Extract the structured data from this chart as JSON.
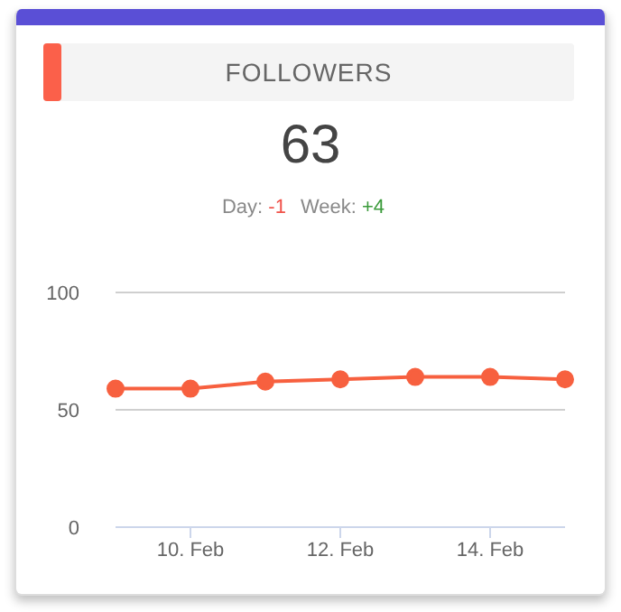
{
  "chart_data": {
    "type": "line",
    "title": "FOLLOWERS",
    "annotations": [
      "63",
      "Day: -1",
      "Week: +4"
    ],
    "x": [
      "--02-09",
      "--02-10",
      "--02-11",
      "--02-12",
      "--02-13",
      "--02-14",
      "--02-15"
    ],
    "series": [
      {
        "color": "#f7603f",
        "values": [
          59,
          59,
          62,
          63,
          64,
          64,
          63
        ]
      }
    ],
    "xlim": [
      "--02-09",
      "--02-15"
    ],
    "xticks": [
      {
        "value": "--02-10",
        "label": "10. Feb"
      },
      {
        "value": "--02-12",
        "label": "12. Feb"
      },
      {
        "value": "--02-14",
        "label": "14. Feb"
      }
    ],
    "ylim": [
      0,
      100
    ],
    "yticks": [
      0,
      50,
      100
    ],
    "grid": "y",
    "legend": false,
    "marker": "circle",
    "line_style": "solid"
  }
}
